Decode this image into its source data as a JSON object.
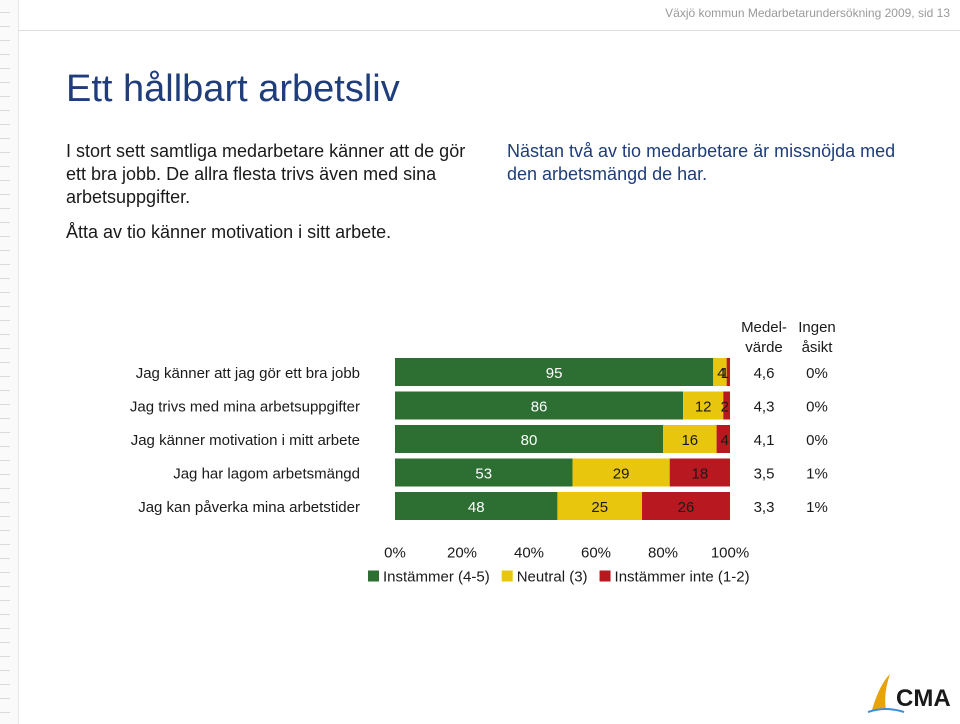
{
  "header": {
    "text": "Växjö kommun Medarbetarundersökning 2009,  sid 13"
  },
  "title": "Ett hållbart arbetsliv",
  "left_text": {
    "p1": "I stort sett samtliga medarbetare känner att de gör ett bra jobb. De allra flesta trivs även med sina arbetsuppgifter.",
    "p2": "Åtta av tio känner motivation i sitt arbete."
  },
  "right_text": {
    "p1": "Nästan två av tio medarbetare är missnöjda med den arbetsmängd de har."
  },
  "col_headers": {
    "mean": [
      "Medel-",
      "värde"
    ],
    "no_opinion": [
      "Ingen",
      "åsikt"
    ]
  },
  "logo": {
    "text": "CMA"
  },
  "colors": {
    "agree": "#2d6e32",
    "neutral": "#e8c60e",
    "disagree": "#b81820"
  },
  "chart_data": {
    "type": "bar",
    "orientation": "horizontal",
    "stacked": true,
    "categories": [
      "Jag känner att jag gör ett bra jobb",
      "Jag trivs med mina arbetsuppgifter",
      "Jag känner motivation i mitt arbete",
      "Jag har lagom arbetsmängd",
      "Jag kan påverka mina arbetstider"
    ],
    "series": [
      {
        "name": "Instämmer (4-5)",
        "color": "#2d6e32",
        "values": [
          95,
          86,
          80,
          53,
          48
        ]
      },
      {
        "name": "Neutral (3)",
        "color": "#e8c60e",
        "values": [
          4,
          12,
          16,
          29,
          25
        ]
      },
      {
        "name": "Instämmer inte (1-2)",
        "color": "#b81820",
        "values": [
          1,
          2,
          4,
          18,
          26
        ]
      }
    ],
    "mean_values": [
      "4,6",
      "4,3",
      "4,1",
      "3,5",
      "3,3"
    ],
    "no_opinion_values": [
      "0%",
      "0%",
      "0%",
      "1%",
      "1%"
    ],
    "x_ticks": [
      "0%",
      "20%",
      "40%",
      "60%",
      "80%",
      "100%"
    ],
    "xlim": [
      0,
      100
    ],
    "legend": "bottom"
  }
}
